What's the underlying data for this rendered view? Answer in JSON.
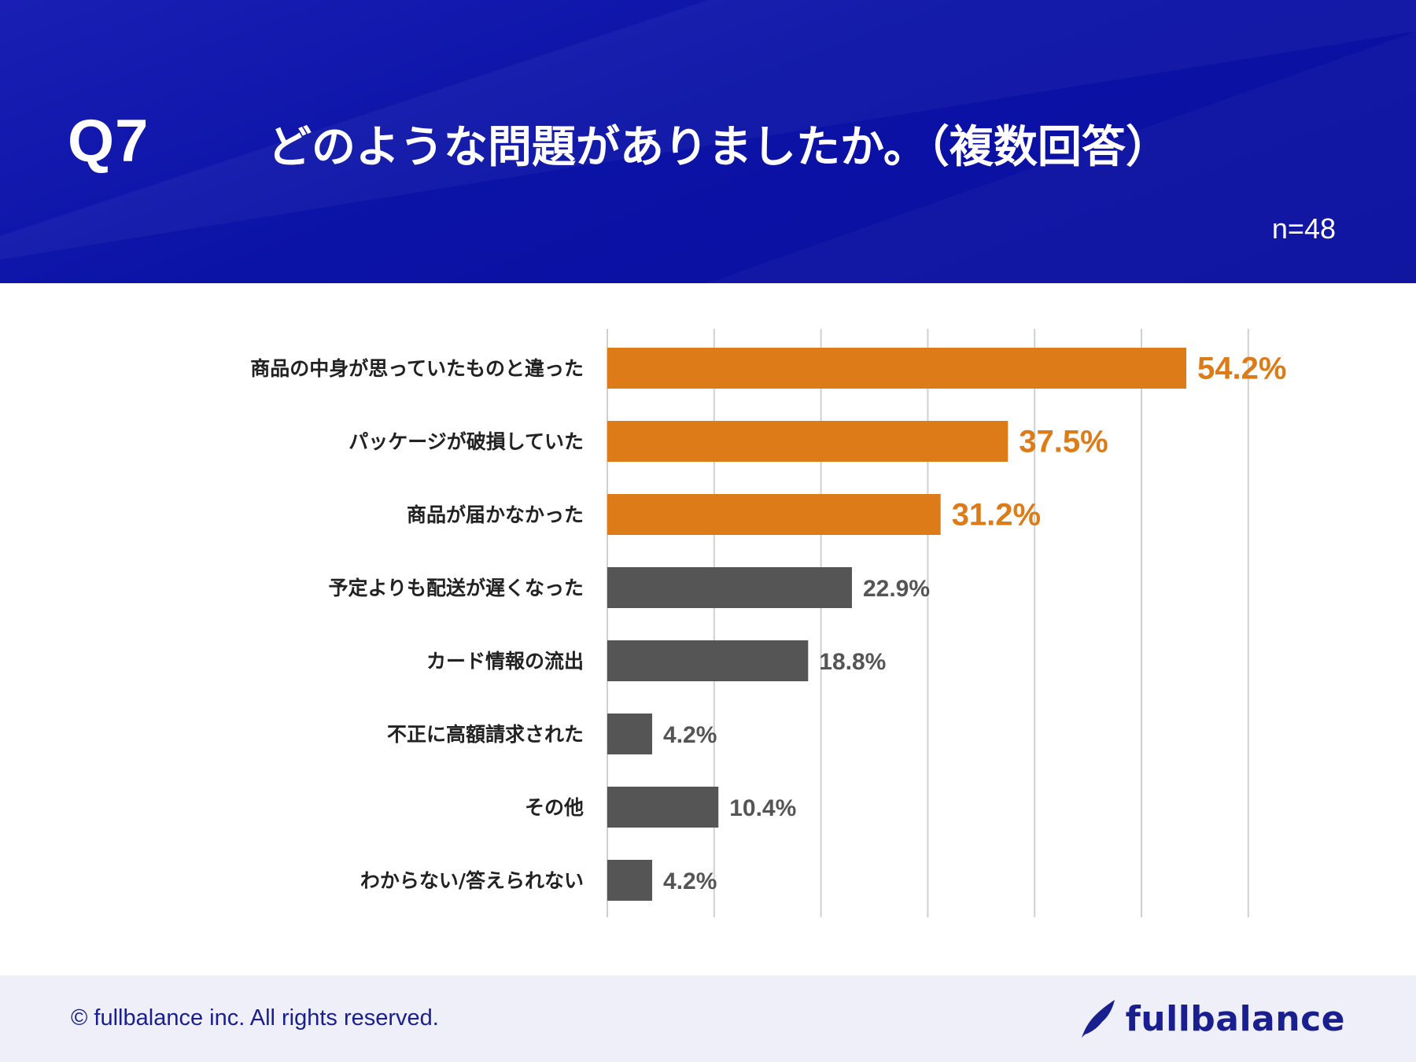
{
  "header": {
    "question_number": "Q7",
    "title": "どのような問題がありましたか。（複数回答）",
    "sample_size": "n=48"
  },
  "colors": {
    "highlight": "#dc7b17",
    "normal": "#555555",
    "grid": "#d0d0d0",
    "header_bg": "#0b12a6",
    "footer_bg": "#efeff9",
    "brand": "#1a1f8f"
  },
  "chart_data": {
    "type": "bar",
    "orientation": "horizontal",
    "title": "",
    "xlabel": "",
    "ylabel": "",
    "xlim": [
      0,
      60
    ],
    "grid": true,
    "categories": [
      "商品の中身が思っていたものと違った",
      "パッケージが破損していた",
      "商品が届かなかった",
      "予定よりも配送が遅くなった",
      "カード情報の流出",
      "不正に高額請求された",
      "その他",
      "わからない/答えられない"
    ],
    "values": [
      54.2,
      37.5,
      31.2,
      22.9,
      18.8,
      4.2,
      10.4,
      4.2
    ],
    "value_labels": [
      "54.2%",
      "37.5%",
      "31.2%",
      "22.9%",
      "18.8%",
      "4.2%",
      "10.4%",
      "4.2%"
    ],
    "highlighted": [
      true,
      true,
      true,
      false,
      false,
      false,
      false,
      false
    ]
  },
  "footer": {
    "copyright": "© fullbalance inc. All rights reserved.",
    "brand_name": "fullbalance",
    "brand_icon": "feather-icon"
  }
}
